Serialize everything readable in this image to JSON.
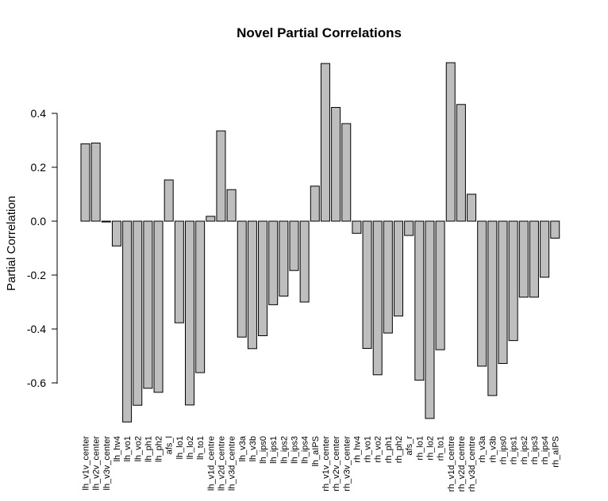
{
  "chart_data": {
    "type": "bar",
    "title": "Novel Partial Correlations",
    "xlabel": "",
    "ylabel": "Partial Correlation",
    "ylim": [
      -0.75,
      0.6
    ],
    "yticks": [
      -0.6,
      -0.4,
      -0.2,
      0.0,
      0.2,
      0.4
    ],
    "ytick_labels": [
      "-0.6",
      "-0.4",
      "-0.2",
      "0.0",
      "0.2",
      "0.4"
    ],
    "grid": false,
    "bar_color": "#bebebe",
    "categories": [
      "lh_v1v_center",
      "lh_v2v_center",
      "lh_v3v_center",
      "lh_hv4",
      "lh_vo1",
      "lh_vo2",
      "lh_ph1",
      "lh_ph2",
      "afs_l",
      "lh_lo1",
      "lh_lo2",
      "lh_to1",
      "lh_v1d_centre",
      "lh_v2d_centre",
      "lh_v3d_centre",
      "lh_v3a",
      "lh_v3b",
      "lh_ips0",
      "lh_ips1",
      "lh_ips2",
      "lh_ips3",
      "lh_ips4",
      "lh_aIPS",
      "rh_v1v_center",
      "rh_v2v_center",
      "rh_v3v_center",
      "rh_hv4",
      "rh_vo1",
      "rh_vo2",
      "rh_ph1",
      "rh_ph2",
      "afs_r",
      "rh_lo1",
      "rh_lo2",
      "rh_to1",
      "rh_v1d_centre",
      "rh_v2d_centre",
      "rh_v3d_centre",
      "rh_v3a",
      "rh_v3b",
      "rh_ips0",
      "rh_ips1",
      "rh_ips2",
      "rh_ips3",
      "rh_ips4",
      "rh_aIPS"
    ],
    "values": [
      0.287,
      0.29,
      -0.003,
      -0.092,
      -0.745,
      -0.683,
      -0.62,
      -0.635,
      0.153,
      -0.377,
      -0.682,
      -0.562,
      0.018,
      0.335,
      0.117,
      -0.43,
      -0.473,
      -0.425,
      -0.31,
      -0.278,
      -0.183,
      -0.3,
      0.13,
      0.585,
      0.422,
      0.362,
      -0.045,
      -0.472,
      -0.57,
      -0.415,
      -0.352,
      -0.053,
      -0.59,
      -0.732,
      -0.477,
      0.588,
      0.433,
      0.1,
      -0.538,
      -0.647,
      -0.528,
      -0.443,
      -0.282,
      -0.282,
      -0.208,
      -0.063
    ]
  }
}
